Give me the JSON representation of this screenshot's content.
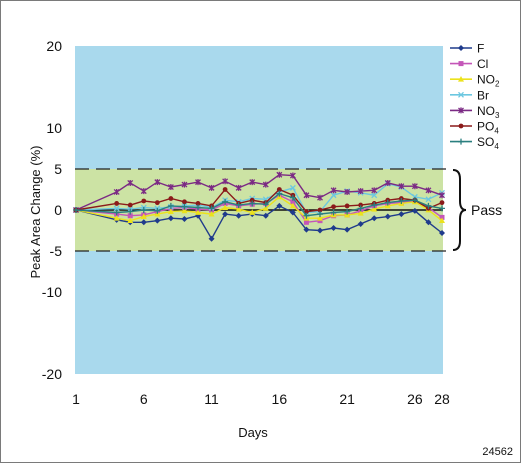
{
  "chart_data": {
    "type": "line",
    "title": "",
    "xlabel": "Days",
    "ylabel": "Peak Area Change (%)",
    "xlim": [
      1,
      28
    ],
    "ylim": [
      -20,
      20
    ],
    "x_ticks": [
      1,
      6,
      11,
      16,
      21,
      26,
      28
    ],
    "y_ticks": [
      -20,
      -10,
      -5,
      0,
      5,
      10,
      20
    ],
    "pass_band": [
      -5,
      5
    ],
    "pass_label": "Pass",
    "plot_background": "#a9d9ed",
    "pass_band_color": "#cce3a4",
    "legend_position": "top-right",
    "footnote": "24562",
    "x": [
      1,
      4,
      5,
      6,
      7,
      8,
      9,
      10,
      11,
      12,
      13,
      14,
      15,
      16,
      17,
      18,
      19,
      20,
      21,
      22,
      23,
      24,
      25,
      26,
      27,
      28
    ],
    "series": [
      {
        "name": "F",
        "sub": "",
        "color": "#1f3b8c",
        "marker": "diamond",
        "values": [
          0,
          -1.2,
          -1.5,
          -1.5,
          -1.3,
          -1.0,
          -1.1,
          -0.7,
          -3.5,
          -0.5,
          -0.7,
          -0.5,
          -0.7,
          0.5,
          -0.3,
          -2.4,
          -2.5,
          -2.2,
          -2.4,
          -1.7,
          -1.0,
          -0.8,
          -0.5,
          -0.1,
          -1.5,
          -2.8
        ]
      },
      {
        "name": "Cl",
        "sub": "",
        "color": "#c456b8",
        "marker": "square",
        "values": [
          0,
          -0.5,
          -0.7,
          -0.6,
          -0.2,
          0.2,
          0.3,
          0.1,
          0.0,
          0.8,
          0.5,
          0.7,
          0.8,
          1.8,
          1.0,
          -1.5,
          -1.3,
          -0.7,
          -0.6,
          -0.1,
          0.5,
          0.8,
          0.9,
          1.1,
          0.3,
          -0.9
        ]
      },
      {
        "name": "NO",
        "sub": "2",
        "color": "#ece21c",
        "marker": "triangle",
        "values": [
          0,
          -1.0,
          -1.3,
          -0.8,
          -0.5,
          -0.2,
          -0.1,
          -0.3,
          -0.5,
          0.3,
          0.1,
          -0.3,
          0.2,
          1.6,
          0.5,
          -1.0,
          -1.0,
          -0.6,
          -0.6,
          -0.4,
          0.1,
          0.5,
          0.8,
          1.0,
          0.0,
          -1.3
        ]
      },
      {
        "name": "Br",
        "sub": "",
        "color": "#6cc7e0",
        "marker": "x",
        "values": [
          0,
          0.2,
          0.1,
          0.3,
          0.2,
          0.4,
          0.5,
          0.6,
          0.3,
          1.2,
          1.0,
          1.4,
          1.3,
          2.2,
          2.7,
          -0.3,
          -0.2,
          1.8,
          2.3,
          2.1,
          1.8,
          3.2,
          2.8,
          1.6,
          1.3,
          2.1
        ]
      },
      {
        "name": "NO",
        "sub": "3",
        "color": "#7b2a84",
        "marker": "star",
        "values": [
          0,
          2.2,
          3.3,
          2.3,
          3.4,
          2.8,
          3.1,
          3.4,
          2.7,
          3.5,
          2.7,
          3.4,
          3.1,
          4.3,
          4.2,
          1.8,
          1.5,
          2.4,
          2.2,
          2.3,
          2.4,
          3.3,
          2.9,
          2.9,
          2.4,
          1.8
        ]
      },
      {
        "name": "PO",
        "sub": "4",
        "color": "#8b1a1a",
        "marker": "circle",
        "values": [
          0,
          0.8,
          0.6,
          1.1,
          0.9,
          1.4,
          1.0,
          0.8,
          0.5,
          2.5,
          0.8,
          1.2,
          0.9,
          2.5,
          1.8,
          -0.2,
          0.0,
          0.4,
          0.5,
          0.6,
          0.8,
          1.2,
          1.4,
          1.2,
          0.2,
          0.9
        ]
      },
      {
        "name": "SO",
        "sub": "4",
        "color": "#2a7f7f",
        "marker": "plus",
        "values": [
          0,
          -0.3,
          -0.2,
          0.0,
          -0.1,
          0.5,
          0.4,
          0.3,
          0.2,
          1.0,
          0.6,
          0.8,
          0.7,
          2.0,
          1.5,
          -0.7,
          -0.5,
          -0.3,
          -0.2,
          0.2,
          0.6,
          0.9,
          1.1,
          1.2,
          0.5,
          0.2
        ]
      }
    ]
  }
}
